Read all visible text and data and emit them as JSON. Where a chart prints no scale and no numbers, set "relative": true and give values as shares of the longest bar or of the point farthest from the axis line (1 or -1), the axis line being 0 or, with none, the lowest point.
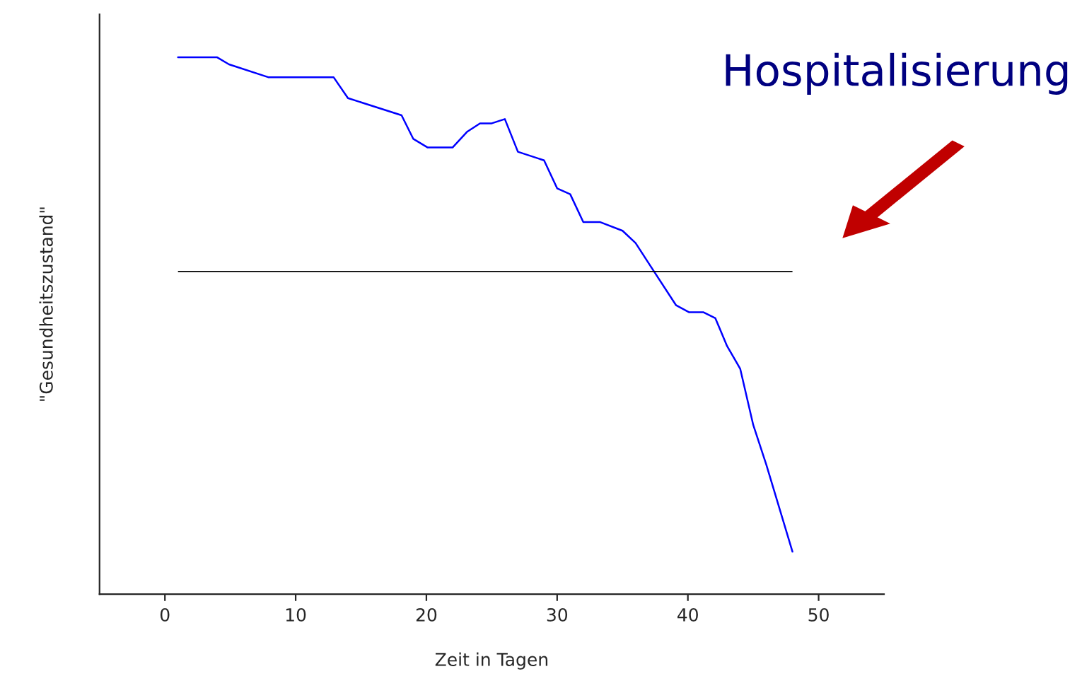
{
  "chart_data": {
    "type": "line",
    "relative": true,
    "xlabel": "Zeit in Tagen",
    "ylabel": "\"Gesundheitszustand\"",
    "x": [
      1,
      4,
      4.9,
      7.9,
      12.9,
      14,
      18.1,
      19,
      20.1,
      22,
      23.1,
      24.1,
      25,
      26,
      27,
      29,
      30,
      31,
      32,
      33.3,
      35,
      36,
      37.2,
      39.1,
      40.1,
      41.2,
      42.1,
      43,
      44,
      45,
      46,
      48
    ],
    "series": [
      {
        "color": "#0000ff",
        "values": [
          1,
          1,
          0.987,
          0.963,
          0.963,
          0.924,
          0.892,
          0.848,
          0.832,
          0.832,
          0.861,
          0.877,
          0.877,
          0.885,
          0.824,
          0.808,
          0.756,
          0.745,
          0.693,
          0.693,
          0.677,
          0.654,
          0.609,
          0.538,
          0.525,
          0.525,
          0.514,
          0.462,
          0.42,
          0.315,
          0.241,
          0.079
        ]
      }
    ],
    "xlim": [
      -5,
      55
    ],
    "xticks": [
      0,
      10,
      20,
      30,
      40,
      50
    ],
    "ref_lines": [
      {
        "axis": "y",
        "value": 0.601,
        "color": "#000000"
      }
    ],
    "annotations": [
      "Hospitalisierung"
    ],
    "grid": false,
    "legend": false,
    "marker": "none",
    "line_style": "solid"
  }
}
